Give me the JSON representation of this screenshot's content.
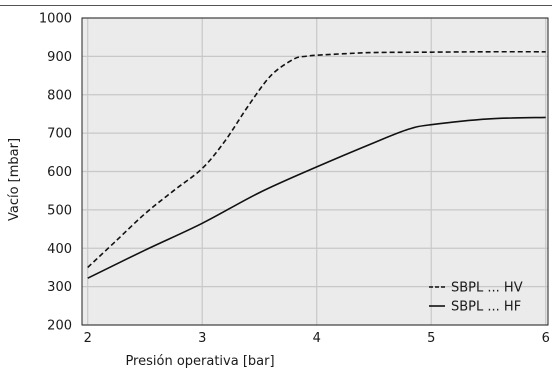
{
  "chart_data": {
    "type": "line",
    "title": "",
    "xlabel": "Presión operativa [bar]",
    "ylabel": "Vacío [mbar]",
    "xlim": [
      1.95,
      6.02
    ],
    "ylim": [
      200,
      1000
    ],
    "xticks": [
      2,
      3,
      4,
      5,
      6
    ],
    "yticks": [
      200,
      300,
      400,
      500,
      600,
      700,
      800,
      900,
      1000
    ],
    "grid": true,
    "legend_position": "bottom-right",
    "colors": {
      "plot_background": "#ebebeb",
      "grid": "#c8c8c8",
      "line": "#111111"
    },
    "series": [
      {
        "name": "SBPL ... HV",
        "style": "dashed",
        "x": [
          2.0,
          2.25,
          2.5,
          2.75,
          3.0,
          3.2,
          3.4,
          3.6,
          3.8,
          3.9,
          4.0,
          4.25,
          4.5,
          5.0,
          5.5,
          6.0
        ],
        "y": [
          350,
          420,
          490,
          550,
          608,
          680,
          770,
          850,
          893,
          900,
          903,
          907,
          910,
          911,
          912,
          912
        ]
      },
      {
        "name": "SBPL ... HF",
        "style": "solid",
        "x": [
          2.0,
          2.5,
          3.0,
          3.5,
          4.0,
          4.5,
          4.8,
          5.0,
          5.5,
          6.0
        ],
        "y": [
          322,
          395,
          465,
          545,
          612,
          675,
          710,
          722,
          737,
          741
        ]
      }
    ]
  }
}
